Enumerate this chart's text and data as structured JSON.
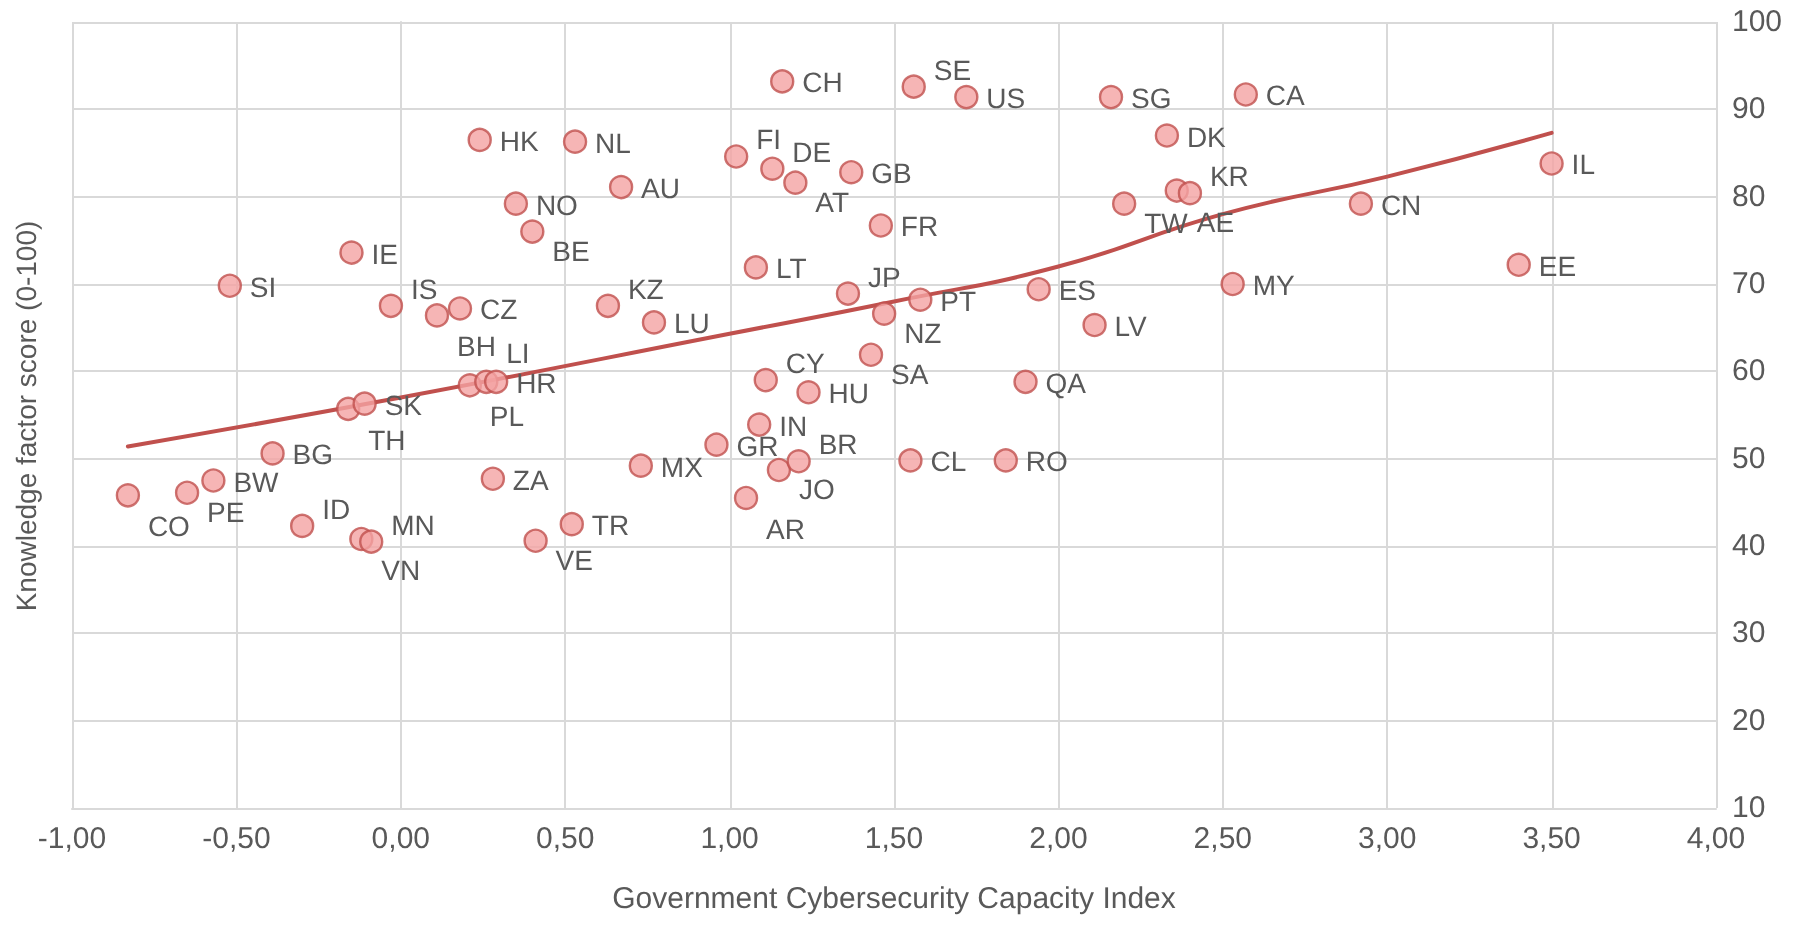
{
  "chart_data": {
    "type": "scatter",
    "xlabel": "Government Cybersecurity Capacity Index",
    "ylabel": "Knowledge factor score (0-100)",
    "xlim": [
      -1,
      4
    ],
    "xticks": [
      {
        "value": -1,
        "label": "-1,00"
      },
      {
        "value": -0.5,
        "label": "-0,50"
      },
      {
        "value": 0,
        "label": "0,00"
      },
      {
        "value": 0.5,
        "label": "0,50"
      },
      {
        "value": 1,
        "label": "1,00"
      },
      {
        "value": 1.5,
        "label": "1,50"
      },
      {
        "value": 2,
        "label": "2,00"
      },
      {
        "value": 2.5,
        "label": "2,50"
      },
      {
        "value": 3,
        "label": "3,00"
      },
      {
        "value": 3.5,
        "label": "3,50"
      },
      {
        "value": 4,
        "label": "4,00"
      }
    ],
    "ylim": [
      10,
      100
    ],
    "yticks": [
      10,
      20,
      30,
      40,
      50,
      60,
      70,
      80,
      90,
      100
    ],
    "grid": true,
    "marker": "circle",
    "series": [
      {
        "color": "#f4a3a3",
        "x": [
          1.16,
          1.56,
          0.24,
          0.53,
          1.02,
          1.13,
          1.2,
          1.37,
          0.67,
          0.35,
          0.4,
          1.46,
          -0.15,
          1.08,
          -0.52,
          -0.03,
          0.11,
          0.18,
          0.63,
          0.77,
          1.36,
          1.47,
          1.58,
          1.43,
          1.11,
          1.24,
          1.09,
          0.21,
          0.26,
          0.29,
          -0.16,
          -0.11,
          -0.39,
          -0.83,
          -0.65,
          -0.57,
          -0.3,
          -0.12,
          -0.09,
          0.28,
          0.73,
          0.96,
          1.15,
          1.21,
          1.05,
          0.41,
          0.52,
          1.55,
          1.84,
          1.9,
          1.72,
          2.16,
          2.57,
          2.33,
          2.2,
          2.36,
          2.4,
          2.92,
          3.5,
          3.4,
          2.53,
          1.94,
          2.11
        ],
        "values": [
          93.2,
          92.6,
          86.5,
          86.3,
          84.6,
          83.2,
          81.6,
          82.8,
          81.1,
          79.2,
          76.0,
          76.7,
          73.6,
          71.9,
          69.8,
          67.5,
          66.4,
          67.2,
          67.5,
          65.6,
          68.9,
          66.6,
          68.2,
          61.9,
          59.0,
          57.6,
          53.9,
          58.4,
          58.8,
          58.8,
          55.7,
          56.3,
          50.6,
          45.8,
          46.1,
          47.5,
          42.3,
          40.8,
          40.5,
          47.7,
          49.2,
          51.6,
          48.7,
          49.7,
          45.5,
          40.6,
          42.5,
          49.8,
          49.8,
          58.8,
          91.4,
          91.4,
          91.7,
          87.0,
          79.2,
          80.7,
          80.4,
          79.2,
          83.8,
          72.2,
          70.0,
          69.4,
          65.3
        ]
      },
      {
        "type": "line",
        "color": "#c0504d",
        "marker": "none",
        "x": [
          -0.83,
          0,
          1,
          1.5,
          2,
          2.5,
          3,
          3.5
        ],
        "values": [
          51.4,
          57.0,
          64.3,
          68.0,
          72.0,
          78.0,
          82.3,
          87.3
        ]
      }
    ],
    "annotations": [
      {
        "text": "CH",
        "x": 1.16,
        "y": 93.2
      },
      {
        "text": "SE",
        "x": 1.56,
        "y": 92.6
      },
      {
        "text": "HK",
        "x": 0.24,
        "y": 86.5
      },
      {
        "text": "NL",
        "x": 0.53,
        "y": 86.3
      },
      {
        "text": "FI",
        "x": 1.02,
        "y": 84.6
      },
      {
        "text": "DE",
        "x": 1.13,
        "y": 83.2
      },
      {
        "text": "AT",
        "x": 1.2,
        "y": 81.6
      },
      {
        "text": "GB",
        "x": 1.37,
        "y": 82.8
      },
      {
        "text": "AU",
        "x": 0.67,
        "y": 81.1
      },
      {
        "text": "NO",
        "x": 0.35,
        "y": 79.2
      },
      {
        "text": "BE",
        "x": 0.4,
        "y": 76.0
      },
      {
        "text": "FR",
        "x": 1.46,
        "y": 76.7
      },
      {
        "text": "IE",
        "x": -0.15,
        "y": 73.6
      },
      {
        "text": "LT",
        "x": 1.08,
        "y": 71.9
      },
      {
        "text": "SI",
        "x": -0.52,
        "y": 69.8
      },
      {
        "text": "IS",
        "x": -0.03,
        "y": 67.5
      },
      {
        "text": "BH",
        "x": 0.11,
        "y": 66.4
      },
      {
        "text": "CZ",
        "x": 0.18,
        "y": 67.2
      },
      {
        "text": "KZ",
        "x": 0.63,
        "y": 67.5
      },
      {
        "text": "LU",
        "x": 0.77,
        "y": 65.6
      },
      {
        "text": "JP",
        "x": 1.36,
        "y": 68.9
      },
      {
        "text": "NZ",
        "x": 1.47,
        "y": 66.6
      },
      {
        "text": "PT",
        "x": 1.58,
        "y": 68.2
      },
      {
        "text": "SA",
        "x": 1.43,
        "y": 61.9
      },
      {
        "text": "CY",
        "x": 1.11,
        "y": 59.0
      },
      {
        "text": "HU",
        "x": 1.24,
        "y": 57.6
      },
      {
        "text": "IN",
        "x": 1.09,
        "y": 53.9
      },
      {
        "text": "PL",
        "x": 0.21,
        "y": 58.4
      },
      {
        "text": "LI",
        "x": 0.26,
        "y": 58.8
      },
      {
        "text": "HR",
        "x": 0.29,
        "y": 58.8
      },
      {
        "text": "TH",
        "x": -0.16,
        "y": 55.7
      },
      {
        "text": "SK",
        "x": -0.11,
        "y": 56.3
      },
      {
        "text": "BG",
        "x": -0.39,
        "y": 50.6
      },
      {
        "text": "CO",
        "x": -0.83,
        "y": 45.8
      },
      {
        "text": "PE",
        "x": -0.65,
        "y": 46.1
      },
      {
        "text": "BW",
        "x": -0.57,
        "y": 47.5
      },
      {
        "text": "ID",
        "x": -0.3,
        "y": 42.3
      },
      {
        "text": "VN",
        "x": -0.12,
        "y": 40.8
      },
      {
        "text": "MN",
        "x": -0.09,
        "y": 40.5
      },
      {
        "text": "ZA",
        "x": 0.28,
        "y": 47.7
      },
      {
        "text": "MX",
        "x": 0.73,
        "y": 49.2
      },
      {
        "text": "GR",
        "x": 0.96,
        "y": 51.6
      },
      {
        "text": "JO",
        "x": 1.15,
        "y": 48.7
      },
      {
        "text": "BR",
        "x": 1.21,
        "y": 49.7
      },
      {
        "text": "AR",
        "x": 1.05,
        "y": 45.5
      },
      {
        "text": "VE",
        "x": 0.41,
        "y": 40.6
      },
      {
        "text": "TR",
        "x": 0.52,
        "y": 42.5
      },
      {
        "text": "CL",
        "x": 1.55,
        "y": 49.8
      },
      {
        "text": "RO",
        "x": 1.84,
        "y": 49.8
      },
      {
        "text": "QA",
        "x": 1.9,
        "y": 58.8
      },
      {
        "text": "US",
        "x": 1.72,
        "y": 91.4
      },
      {
        "text": "SG",
        "x": 2.16,
        "y": 91.4
      },
      {
        "text": "CA",
        "x": 2.57,
        "y": 91.7
      },
      {
        "text": "DK",
        "x": 2.33,
        "y": 87.0
      },
      {
        "text": "TW",
        "x": 2.2,
        "y": 79.2
      },
      {
        "text": "AE",
        "x": 2.36,
        "y": 80.7
      },
      {
        "text": "KR",
        "x": 2.4,
        "y": 80.4
      },
      {
        "text": "CN",
        "x": 2.92,
        "y": 79.2
      },
      {
        "text": "IL",
        "x": 3.5,
        "y": 83.8
      },
      {
        "text": "EE",
        "x": 3.4,
        "y": 72.2
      },
      {
        "text": "MY",
        "x": 2.53,
        "y": 70.0
      },
      {
        "text": "ES",
        "x": 1.94,
        "y": 69.4
      },
      {
        "text": "LV",
        "x": 2.11,
        "y": 65.3
      }
    ]
  }
}
